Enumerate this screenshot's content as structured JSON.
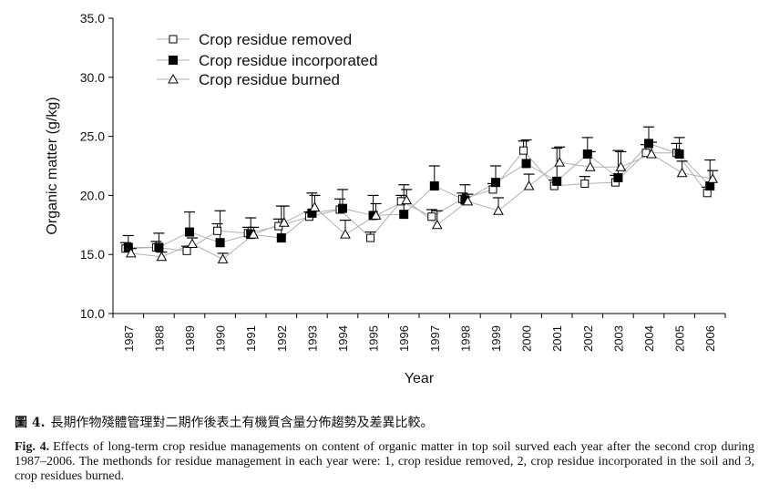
{
  "chart_data": {
    "type": "line",
    "xlabel": "Year",
    "ylabel": "Organic matter (g/kg)",
    "ylim": [
      10.0,
      35.0
    ],
    "yticks": [
      "10.0",
      "15.0",
      "20.0",
      "25.0",
      "30.0",
      "35.0"
    ],
    "categories": [
      "1987",
      "1988",
      "1989",
      "1990",
      "1991",
      "1992",
      "1993",
      "1994",
      "1995",
      "1996",
      "1997",
      "1998",
      "1999",
      "2000",
      "2001",
      "2002",
      "2003",
      "2004",
      "2005",
      "2006"
    ],
    "grid": false,
    "legend_position": "top-left",
    "series": [
      {
        "name": "Crop residue removed",
        "marker": "open-square",
        "values": [
          15.5,
          15.6,
          15.3,
          17.0,
          16.8,
          17.4,
          18.2,
          18.8,
          16.4,
          19.5,
          18.2,
          19.7,
          20.5,
          23.8,
          20.8,
          21.0,
          21.1,
          23.6,
          23.6,
          20.2
        ],
        "error": [
          0.5,
          0.5,
          0.4,
          0.6,
          0.5,
          0.6,
          0.4,
          0.9,
          0.5,
          0.5,
          0.6,
          0.5,
          0.5,
          0.8,
          0.5,
          0.6,
          0.6,
          0.7,
          0.8,
          0.5
        ]
      },
      {
        "name": "Crop residue incorporated",
        "marker": "filled-square",
        "values": [
          15.6,
          15.6,
          16.9,
          16.0,
          16.7,
          16.4,
          18.5,
          18.9,
          18.3,
          18.4,
          20.8,
          19.6,
          21.1,
          22.7,
          21.2,
          23.5,
          21.5,
          24.4,
          23.5,
          20.8
        ],
        "error": [
          1.0,
          1.2,
          1.7,
          2.7,
          1.4,
          2.7,
          1.7,
          1.6,
          1.7,
          2.5,
          1.7,
          1.3,
          1.4,
          2.0,
          2.8,
          1.4,
          2.3,
          1.4,
          1.4,
          2.2
        ]
      },
      {
        "name": "Crop residue burned",
        "marker": "open-triangle",
        "values": [
          15.1,
          14.8,
          15.9,
          14.6,
          16.7,
          17.7,
          19.0,
          16.7,
          18.3,
          19.6,
          17.5,
          19.5,
          18.7,
          20.8,
          22.8,
          22.4,
          22.4,
          23.5,
          21.9,
          21.4
        ],
        "error": [
          0.4,
          0.4,
          0.5,
          0.5,
          0.6,
          1.4,
          1.0,
          1.2,
          1.0,
          0.9,
          1.2,
          0.6,
          1.1,
          1.0,
          1.3,
          1.3,
          1.3,
          1.0,
          1.0,
          0.7
        ]
      }
    ]
  },
  "caption": {
    "zh_label": "圖 4.",
    "zh_text": "長期作物殘體管理對二期作後表土有機質含量分佈趨勢及差異比較。",
    "en_label": "Fig. 4.",
    "en_text": "Effects of long-term crop residue managements on content of organic matter in top soil surved each year after the second crop during 1987–2006.   The methonds for residue management in each year were: 1, crop residue removed, 2, crop residue incorporated in the soil and 3, crop residues burned."
  }
}
